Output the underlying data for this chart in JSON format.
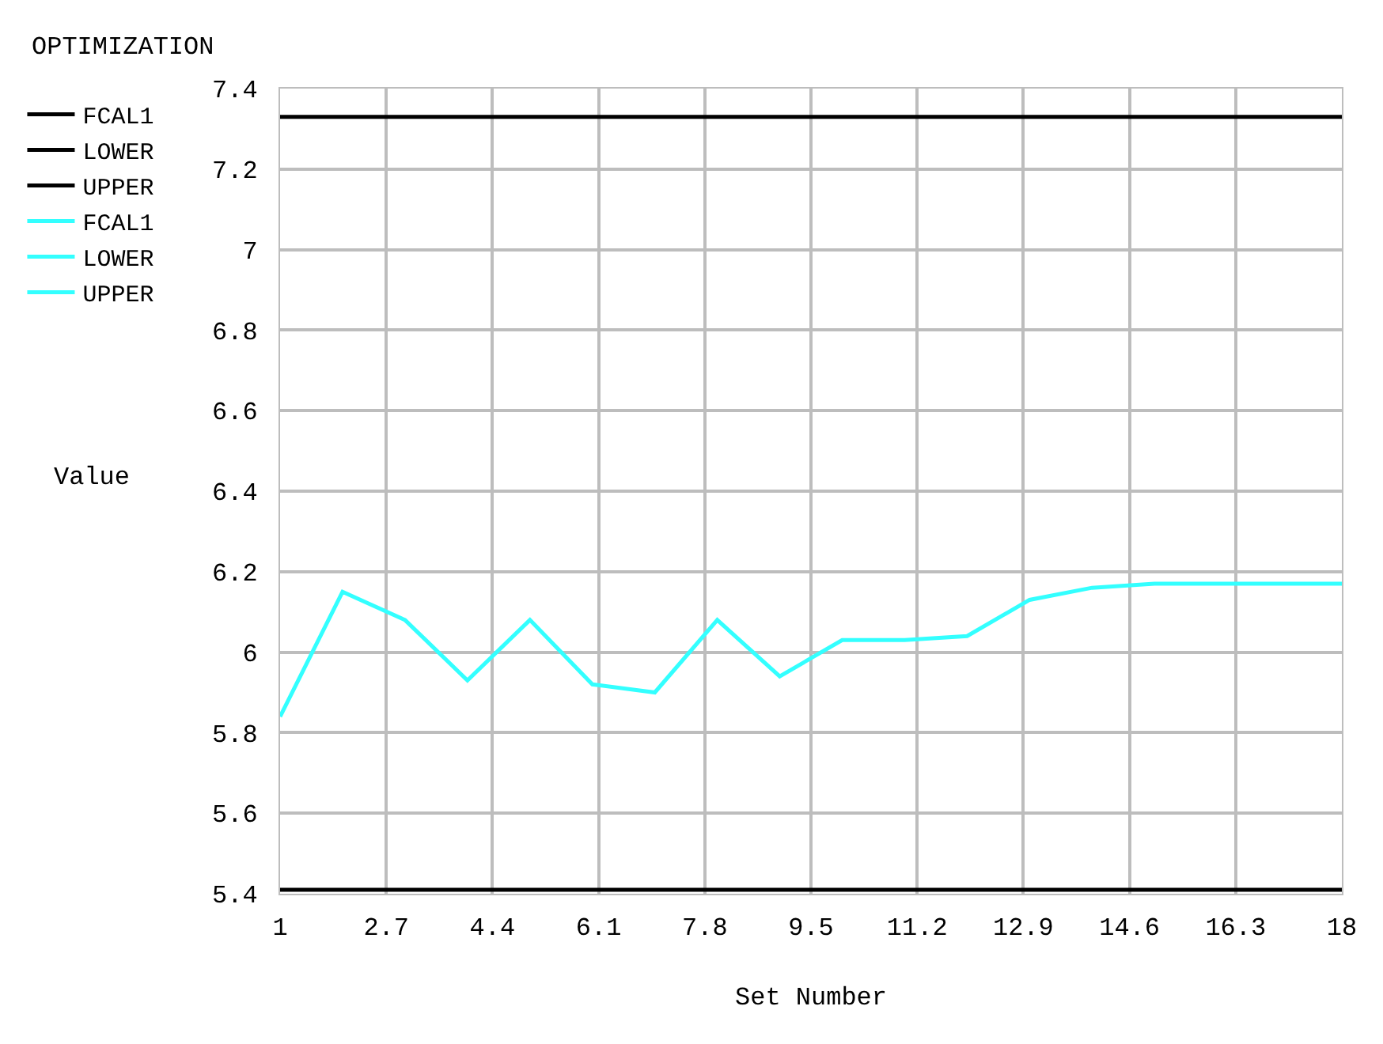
{
  "chart_data": {
    "type": "line",
    "title": "OPTIMIZATION",
    "xlabel": "Set Number",
    "ylabel": "Value",
    "x": [
      1,
      2,
      3,
      4,
      5,
      6,
      7,
      8,
      9,
      10,
      11,
      12,
      13,
      14,
      15,
      16,
      17,
      18
    ],
    "series": [
      {
        "name": "FCAL1",
        "color": "#000000",
        "values": [
          null,
          null,
          null,
          null,
          null,
          null,
          null,
          null,
          null,
          null,
          null,
          null,
          null,
          null,
          null,
          null,
          null,
          null
        ]
      },
      {
        "name": "LOWER",
        "color": "#000000",
        "values": [
          5.41,
          5.41,
          5.41,
          5.41,
          5.41,
          5.41,
          5.41,
          5.41,
          5.41,
          5.41,
          5.41,
          5.41,
          5.41,
          5.41,
          5.41,
          5.41,
          5.41,
          5.41
        ]
      },
      {
        "name": "UPPER",
        "color": "#000000",
        "values": [
          7.33,
          7.33,
          7.33,
          7.33,
          7.33,
          7.33,
          7.33,
          7.33,
          7.33,
          7.33,
          7.33,
          7.33,
          7.33,
          7.33,
          7.33,
          7.33,
          7.33,
          7.33
        ]
      },
      {
        "name": "FCAL1",
        "color": "#33ffff",
        "values": [
          5.84,
          6.15,
          6.08,
          5.93,
          6.08,
          5.92,
          5.9,
          6.08,
          5.94,
          6.03,
          6.03,
          6.04,
          6.13,
          6.16,
          6.17,
          6.17,
          6.17,
          6.17
        ]
      },
      {
        "name": "LOWER",
        "color": "#33ffff",
        "values": [
          null,
          null,
          null,
          null,
          null,
          null,
          null,
          null,
          null,
          null,
          null,
          null,
          null,
          null,
          null,
          null,
          null,
          null
        ]
      },
      {
        "name": "UPPER",
        "color": "#33ffff",
        "values": [
          null,
          null,
          null,
          null,
          null,
          null,
          null,
          null,
          null,
          null,
          null,
          null,
          null,
          null,
          null,
          null,
          null,
          null
        ]
      }
    ],
    "xlim": [
      1,
      18
    ],
    "xticks": [
      1,
      2.7,
      4.4,
      6.1,
      7.8,
      9.5,
      11.2,
      12.9,
      14.6,
      16.3,
      18
    ],
    "ylim": [
      5.4,
      7.4
    ],
    "yticks": [
      5.4,
      5.6,
      5.8,
      6,
      6.2,
      6.4,
      6.6,
      6.8,
      7,
      7.2,
      7.4
    ],
    "grid": true,
    "legend": "top left",
    "marker": "none",
    "line_style": "solid"
  }
}
